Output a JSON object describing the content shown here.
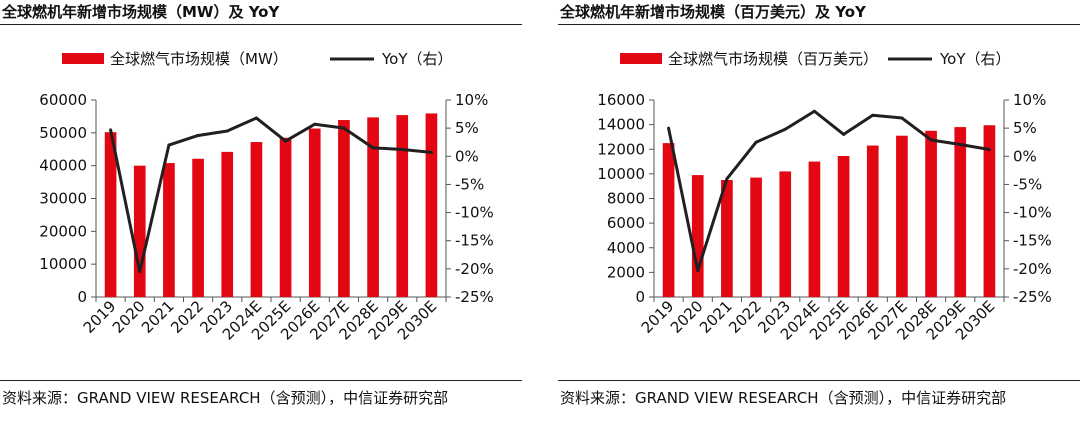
{
  "charts": [
    {
      "title": "全球燃机年新增市场规模（MW）及 YoY",
      "source": "资料来源：GRAND VIEW RESEARCH（含预测），中信证券研究部"
    },
    {
      "title": "全球燃机年新增市场规模（百万美元）及 YoY",
      "source": "资料来源：GRAND VIEW RESEARCH（含预测），中信证券研究部"
    }
  ],
  "colors": {
    "bar": "#e30613",
    "line": "#231f20"
  },
  "chart_data": [
    {
      "type": "bar",
      "title": "全球燃机年新增市场规模（MW）及 YoY",
      "categories": [
        "2019",
        "2020",
        "2021",
        "2022",
        "2023",
        "2024E",
        "2025E",
        "2026E",
        "2027E",
        "2028E",
        "2029E",
        "2030E"
      ],
      "series": [
        {
          "name": "全球燃气市场规模（MW）",
          "type": "bar",
          "axis": "left",
          "values": [
            50200,
            40000,
            40800,
            42100,
            44200,
            47200,
            48500,
            51300,
            53900,
            54700,
            55400,
            55900
          ]
        },
        {
          "name": "YoY（右）",
          "type": "line",
          "axis": "right",
          "values": [
            4.7,
            -20.5,
            2.0,
            3.7,
            4.5,
            6.8,
            2.7,
            5.7,
            5.0,
            1.5,
            1.2,
            0.7
          ]
        }
      ],
      "ylim_left": [
        0,
        60000
      ],
      "yticks_left": [
        "0",
        "10000",
        "20000",
        "30000",
        "40000",
        "50000",
        "60000"
      ],
      "ylim_right": [
        -25,
        10
      ],
      "yticks_right": [
        "-25%",
        "-20%",
        "-15%",
        "-10%",
        "-5%",
        "0%",
        "5%",
        "10%"
      ],
      "legend": [
        "全球燃气市场规模（MW）",
        "YoY（右）"
      ],
      "legend_position": "top"
    },
    {
      "type": "bar",
      "title": "全球燃机年新增市场规模（百万美元）及 YoY",
      "categories": [
        "2019",
        "2020",
        "2021",
        "2022",
        "2023",
        "2024E",
        "2025E",
        "2026E",
        "2027E",
        "2028E",
        "2029E",
        "2030E"
      ],
      "series": [
        {
          "name": "全球燃气市场规模（百万美元）",
          "type": "bar",
          "axis": "left",
          "values": [
            12500,
            9900,
            9500,
            9700,
            10200,
            11000,
            11450,
            12300,
            13100,
            13500,
            13800,
            13950
          ]
        },
        {
          "name": "YoY（右）",
          "type": "line",
          "axis": "right",
          "values": [
            5.0,
            -20.3,
            -4.0,
            2.5,
            4.8,
            8.0,
            3.9,
            7.3,
            6.8,
            2.9,
            2.1,
            1.2
          ]
        }
      ],
      "ylim_left": [
        0,
        16000
      ],
      "yticks_left": [
        "0",
        "2000",
        "4000",
        "6000",
        "8000",
        "10000",
        "12000",
        "14000",
        "16000"
      ],
      "ylim_right": [
        -25,
        10
      ],
      "yticks_right": [
        "-25%",
        "-20%",
        "-15%",
        "-10%",
        "-5%",
        "0%",
        "5%",
        "10%"
      ],
      "legend": [
        "全球燃气市场规模（百万美元）",
        "YoY（右）"
      ],
      "legend_position": "top"
    }
  ]
}
